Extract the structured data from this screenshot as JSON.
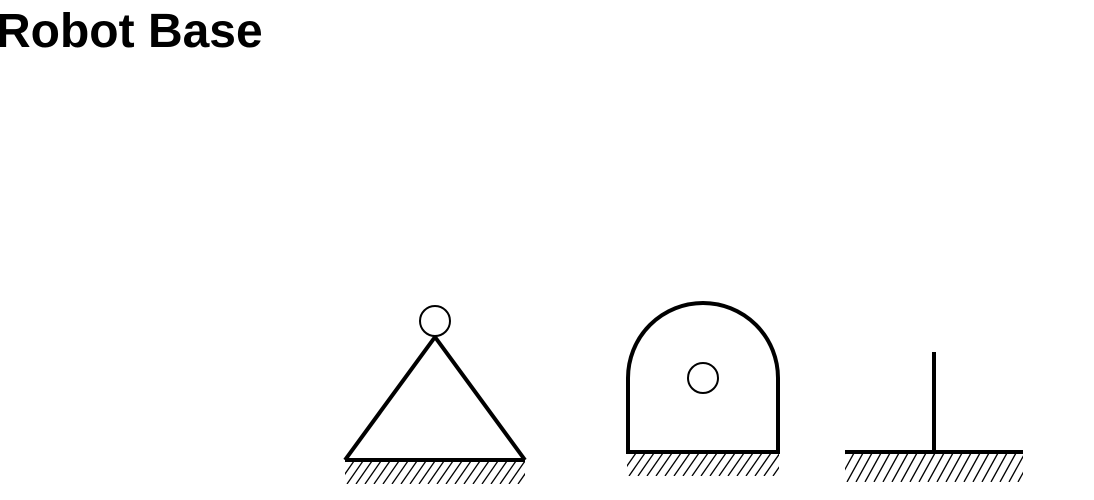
{
  "title": "Robot Base",
  "colors": {
    "stroke": "#000000",
    "background": "#ffffff"
  },
  "symbols": [
    {
      "name": "triangular-pivot-base-symbol"
    },
    {
      "name": "rounded-revolute-base-symbol"
    },
    {
      "name": "fixed-post-base-symbol"
    }
  ]
}
